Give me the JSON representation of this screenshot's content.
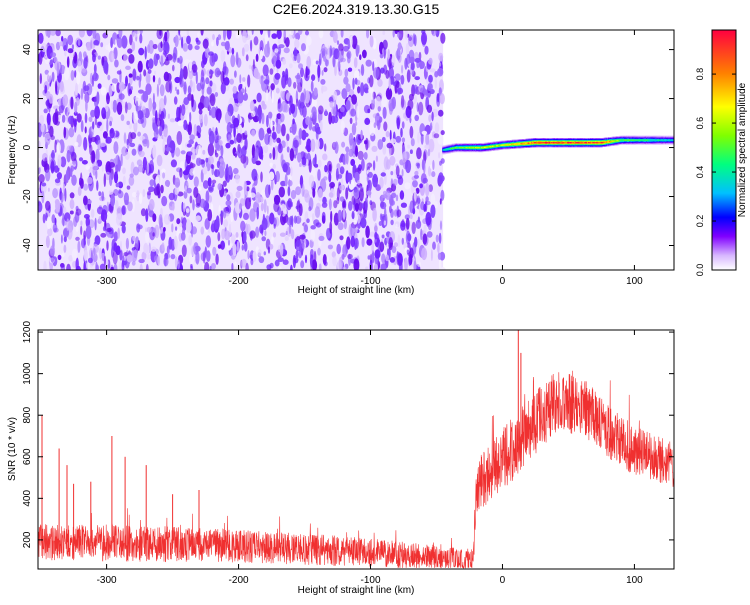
{
  "figure": {
    "title": "C2E6.2024.319.13.30.G15"
  },
  "chart_data": [
    {
      "type": "heatmap",
      "title": "C2E6.2024.319.13.30.G15",
      "xlabel": "Height of straight line (km)",
      "ylabel": "Frequency (Hz)",
      "xlim": [
        -352,
        130
      ],
      "ylim": [
        -50,
        48
      ],
      "xticks": [
        -300,
        -200,
        -100,
        0,
        100
      ],
      "xtick_labels": [
        "-300",
        "-200",
        "-100",
        "0",
        "100"
      ],
      "yticks": [
        -40,
        -20,
        0,
        20,
        40
      ],
      "ytick_labels": [
        "-40",
        "-20",
        "0",
        "20",
        "40"
      ],
      "colorbar": {
        "label": "Normalized spectral amplitude",
        "range": [
          0,
          0.98
        ],
        "ticks": [
          0,
          0.2,
          0.4,
          0.6,
          0.8
        ],
        "tick_labels": [
          "0.0",
          "0.2",
          "0.4",
          "0.6",
          "0.8"
        ],
        "colormap": [
          "#ffffff",
          "#d8b8ff",
          "#8000ff",
          "#0000ff",
          "#00c0ff",
          "#00ff80",
          "#80ff00",
          "#ffff00",
          "#ff8000",
          "#ff0040"
        ]
      },
      "noise_region": {
        "x_range": [
          -352,
          -45
        ],
        "amplitude_range": [
          0.0,
          0.2
        ]
      },
      "signal_band": {
        "x_range": [
          -45,
          130
        ],
        "points": [
          {
            "x": -45,
            "freq": -1,
            "amplitude": 0.35
          },
          {
            "x": -35,
            "freq": 0,
            "amplitude": 0.5
          },
          {
            "x": -15,
            "freq": 0,
            "amplitude": 0.6
          },
          {
            "x": 0,
            "freq": 1,
            "amplitude": 0.6
          },
          {
            "x": 25,
            "freq": 2,
            "amplitude": 0.9
          },
          {
            "x": 75,
            "freq": 2,
            "amplitude": 0.9
          },
          {
            "x": 90,
            "freq": 3,
            "amplitude": 0.5
          },
          {
            "x": 130,
            "freq": 3,
            "amplitude": 0.35
          }
        ]
      },
      "grid": false,
      "legend": "none"
    },
    {
      "type": "line",
      "xlabel": "Height of straight line (km)",
      "ylabel": "SNR (10 * v/v)",
      "xlim": [
        -352,
        130
      ],
      "ylim": [
        60,
        1210
      ],
      "xticks": [
        -300,
        -200,
        -100,
        0,
        100
      ],
      "xtick_labels": [
        "-300",
        "-200",
        "-100",
        "0",
        "100"
      ],
      "yticks": [
        200,
        400,
        600,
        800,
        1000,
        1200
      ],
      "ytick_labels": [
        "200",
        "400",
        "600",
        "800",
        "1000",
        "1200"
      ],
      "color": "#f03030",
      "envelope": {
        "x": [
          -352,
          -300,
          -250,
          -200,
          -150,
          -100,
          -50,
          -22,
          -20,
          0,
          20,
          40,
          60,
          80,
          100,
          130
        ],
        "center": [
          190,
          185,
          180,
          170,
          155,
          140,
          115,
          100,
          460,
          580,
          740,
          860,
          850,
          720,
          630,
          560
        ],
        "spread": [
          90,
          90,
          85,
          80,
          75,
          70,
          60,
          55,
          130,
          160,
          160,
          150,
          140,
          130,
          120,
          110
        ]
      },
      "spikes": [
        {
          "x": -349,
          "y": 800
        },
        {
          "x": -336,
          "y": 640
        },
        {
          "x": -330,
          "y": 560
        },
        {
          "x": -325,
          "y": 470
        },
        {
          "x": -312,
          "y": 480
        },
        {
          "x": -296,
          "y": 700
        },
        {
          "x": -286,
          "y": 600
        },
        {
          "x": -270,
          "y": 560
        },
        {
          "x": -250,
          "y": 420
        },
        {
          "x": -230,
          "y": 440
        },
        {
          "x": 12,
          "y": 1210
        },
        {
          "x": 14,
          "y": 1100
        }
      ],
      "grid": false,
      "legend": "none"
    }
  ]
}
